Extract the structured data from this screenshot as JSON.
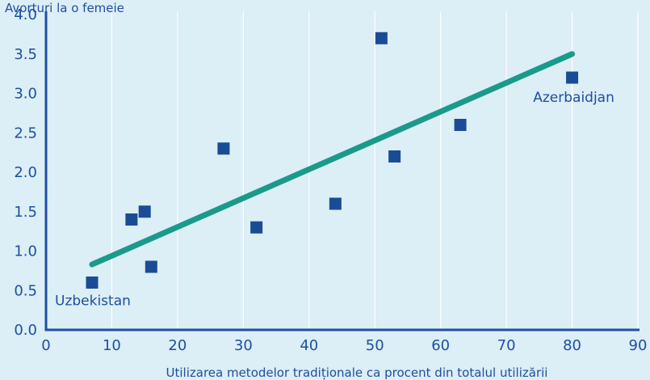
{
  "chart_data": {
    "type": "scatter",
    "title": "",
    "ylabel": "Avorturi la o femeie",
    "xlabel": "Utilizarea metodelor tradiționale ca procent din totalul utilizării",
    "xlim": [
      0,
      90
    ],
    "ylim": [
      0,
      4
    ],
    "x_ticks": [
      "0",
      "10",
      "20",
      "30",
      "40",
      "50",
      "60",
      "70",
      "80",
      "90"
    ],
    "y_ticks": [
      "0.0",
      "0.5",
      "1.0",
      "1.5",
      "2.0",
      "2.5",
      "3.0",
      "3.5",
      "4.0"
    ],
    "grid": "vertical",
    "series": [
      {
        "points": [
          {
            "x": 7,
            "y": 0.6
          },
          {
            "x": 13,
            "y": 1.4
          },
          {
            "x": 15,
            "y": 1.5
          },
          {
            "x": 16,
            "y": 0.8
          },
          {
            "x": 27,
            "y": 2.3
          },
          {
            "x": 32,
            "y": 1.3
          },
          {
            "x": 44,
            "y": 1.6
          },
          {
            "x": 51,
            "y": 3.7
          },
          {
            "x": 53,
            "y": 2.2
          },
          {
            "x": 63,
            "y": 2.6
          },
          {
            "x": 80,
            "y": 3.2
          }
        ]
      }
    ],
    "trendline": {
      "x1": 7,
      "y1": 0.83,
      "x2": 80,
      "y2": 3.5
    },
    "annotations": [
      {
        "text": "Uzbekistan",
        "x": 7,
        "y": 0.6
      },
      {
        "text": "Azerbaidjan",
        "x": 80,
        "y": 3.2
      }
    ],
    "colors": {
      "background": "#dceef6",
      "axis": "#1e4fa0",
      "marker": "#1a4c96",
      "trendline": "#1a9a8a",
      "grid": "#ffffff"
    }
  }
}
